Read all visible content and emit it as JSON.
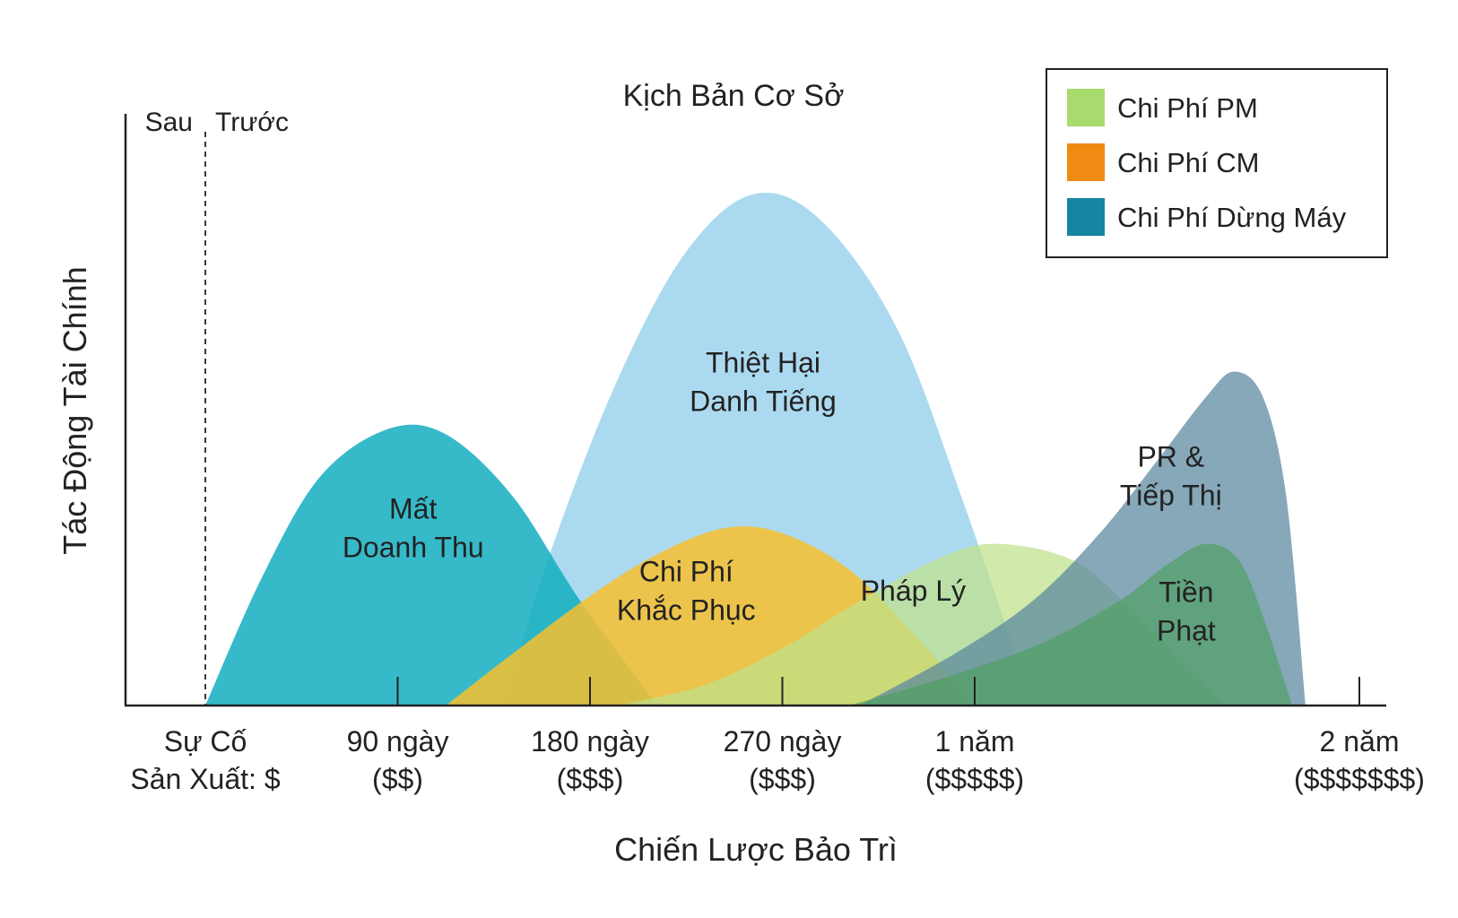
{
  "chart_data": {
    "type": "area",
    "title": "Kịch Bản Cơ Sở",
    "xlabel": "Chiến Lược Bảo Trì",
    "ylabel": "Tác Động Tài Chính",
    "xlim": [
      -0.2,
      6.2
    ],
    "ylim": [
      0,
      100
    ],
    "grid": false,
    "legend_position": "top-right",
    "divider": {
      "x": 0,
      "left_label": "Sau",
      "right_label": "Trước"
    },
    "ticks": [
      {
        "x": 0,
        "lines": [
          "Sự Cố",
          "Sản Xuất: $"
        ],
        "mark": false
      },
      {
        "x": 1,
        "lines": [
          "90 ngày",
          "($$)"
        ],
        "mark": true
      },
      {
        "x": 2,
        "lines": [
          "180 ngày",
          "($$$)"
        ],
        "mark": true
      },
      {
        "x": 3,
        "lines": [
          "270 ngày",
          "($$$)"
        ],
        "mark": true
      },
      {
        "x": 4,
        "lines": [
          "1 năm",
          "($$$$$)"
        ],
        "mark": true
      },
      {
        "x": 6,
        "lines": [
          "2 năm",
          "($$$$$$$)"
        ],
        "mark": true
      }
    ],
    "legend": [
      {
        "label": "Chi Phí PM",
        "color": "#a8da6e"
      },
      {
        "label": "Chi Phí CM",
        "color": "#ef8b12"
      },
      {
        "label": "Chi Phí Dừng Máy",
        "color": "#1486a1"
      }
    ],
    "areas": [
      {
        "label": [
          "Thiệt Hại",
          "Danh Tiếng"
        ],
        "color": "#93cfec",
        "opacity": 0.78,
        "x": [
          1.55,
          1.8,
          2.15,
          2.5,
          2.85,
          3.2,
          3.6,
          3.95,
          4.3
        ],
        "y": [
          0,
          30,
          63,
          87,
          98,
          93,
          72,
          38,
          0
        ]
      },
      {
        "label": [
          "Mất",
          "Doanh Thu"
        ],
        "color": "#13aebf",
        "opacity": 0.85,
        "x": [
          0,
          0.3,
          0.6,
          0.95,
          1.25,
          1.6,
          1.95,
          2.35
        ],
        "y": [
          0,
          25,
          44,
          53,
          52,
          40,
          20,
          0
        ]
      },
      {
        "label": [
          "Chi Phí",
          "Khắc Phục"
        ],
        "color": "#f7bf2e",
        "opacity": 0.85,
        "x": [
          1.25,
          1.6,
          2.0,
          2.35,
          2.7,
          3.0,
          3.35,
          3.7,
          4.0
        ],
        "y": [
          0,
          10,
          21,
          29,
          34,
          33,
          26,
          13,
          0
        ]
      },
      {
        "label": [
          "Pháp Lý"
        ],
        "color": "#bfe08a",
        "opacity": 0.72,
        "x": [
          2.15,
          2.6,
          3.0,
          3.4,
          3.8,
          4.1,
          4.5,
          4.8,
          5.05,
          5.3
        ],
        "y": [
          0,
          4,
          11,
          20,
          28,
          31,
          28,
          19,
          9,
          0
        ]
      },
      {
        "label": [
          "PR &",
          "Tiếp Thị"
        ],
        "color": "#58869e",
        "opacity": 0.72,
        "x": [
          3.4,
          3.9,
          4.3,
          4.65,
          4.95,
          5.2,
          5.35,
          5.5,
          5.62,
          5.72
        ],
        "y": [
          0,
          10,
          20,
          33,
          47,
          59,
          64,
          59,
          40,
          0
        ]
      },
      {
        "label": [
          "Tiền",
          "Phạt"
        ],
        "color": "#4e9f62",
        "opacity": 0.68,
        "x": [
          3.35,
          3.9,
          4.35,
          4.75,
          5.0,
          5.2,
          5.37,
          5.5,
          5.65
        ],
        "y": [
          0,
          6,
          12,
          20,
          27,
          31,
          28,
          17,
          0
        ]
      }
    ]
  }
}
